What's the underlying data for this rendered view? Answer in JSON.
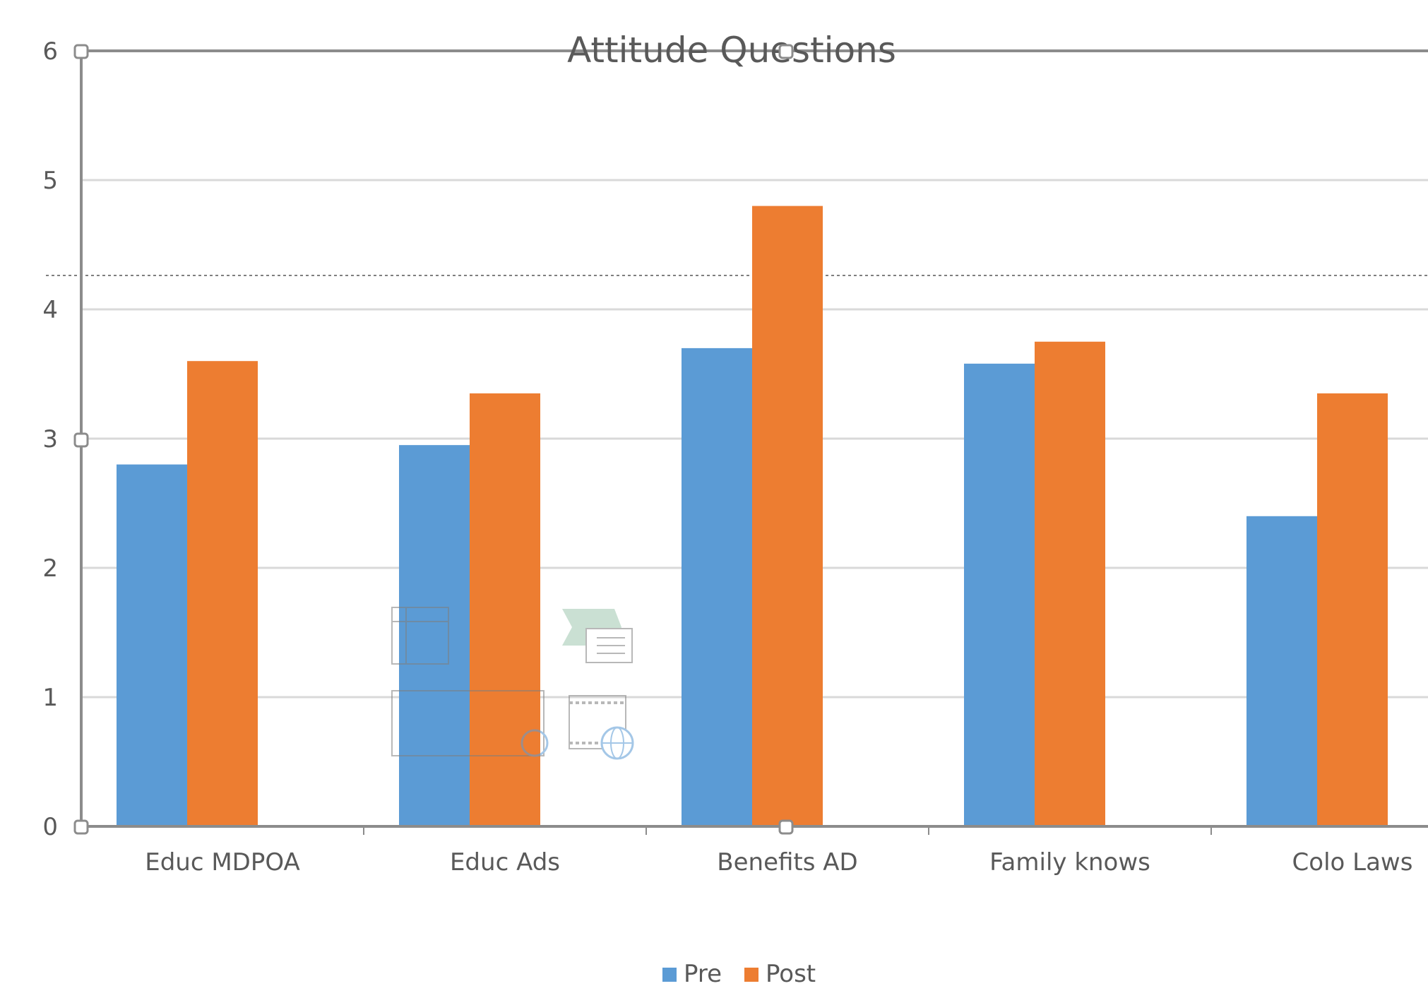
{
  "chart_data": {
    "type": "bar",
    "title": "Attitude Questions",
    "categories": [
      "Educ MDPOA",
      "Educ Ads",
      "Benefits AD",
      "Family knows",
      "Colo Laws"
    ],
    "series": [
      {
        "name": "Pre",
        "color": "#5B9BD5",
        "values": [
          2.8,
          2.95,
          3.7,
          3.58,
          2.4
        ]
      },
      {
        "name": "Post",
        "color": "#ED7D31",
        "values": [
          3.6,
          3.35,
          4.8,
          3.75,
          3.35
        ]
      }
    ],
    "ylim": [
      0,
      6
    ],
    "yticks": [
      "0",
      "1",
      "2",
      "3",
      "4",
      "5",
      "6"
    ],
    "grid": true,
    "legend_position": "bottom",
    "xlabel": "",
    "ylabel": ""
  },
  "colors": {
    "gridline": "#d9d9d9",
    "axis": "#8c8c8c",
    "text": "#595959"
  },
  "overlay_icons": [
    "insert-table-icon",
    "insert-smartart-icon",
    "insert-picture-icon",
    "insert-video-icon"
  ]
}
